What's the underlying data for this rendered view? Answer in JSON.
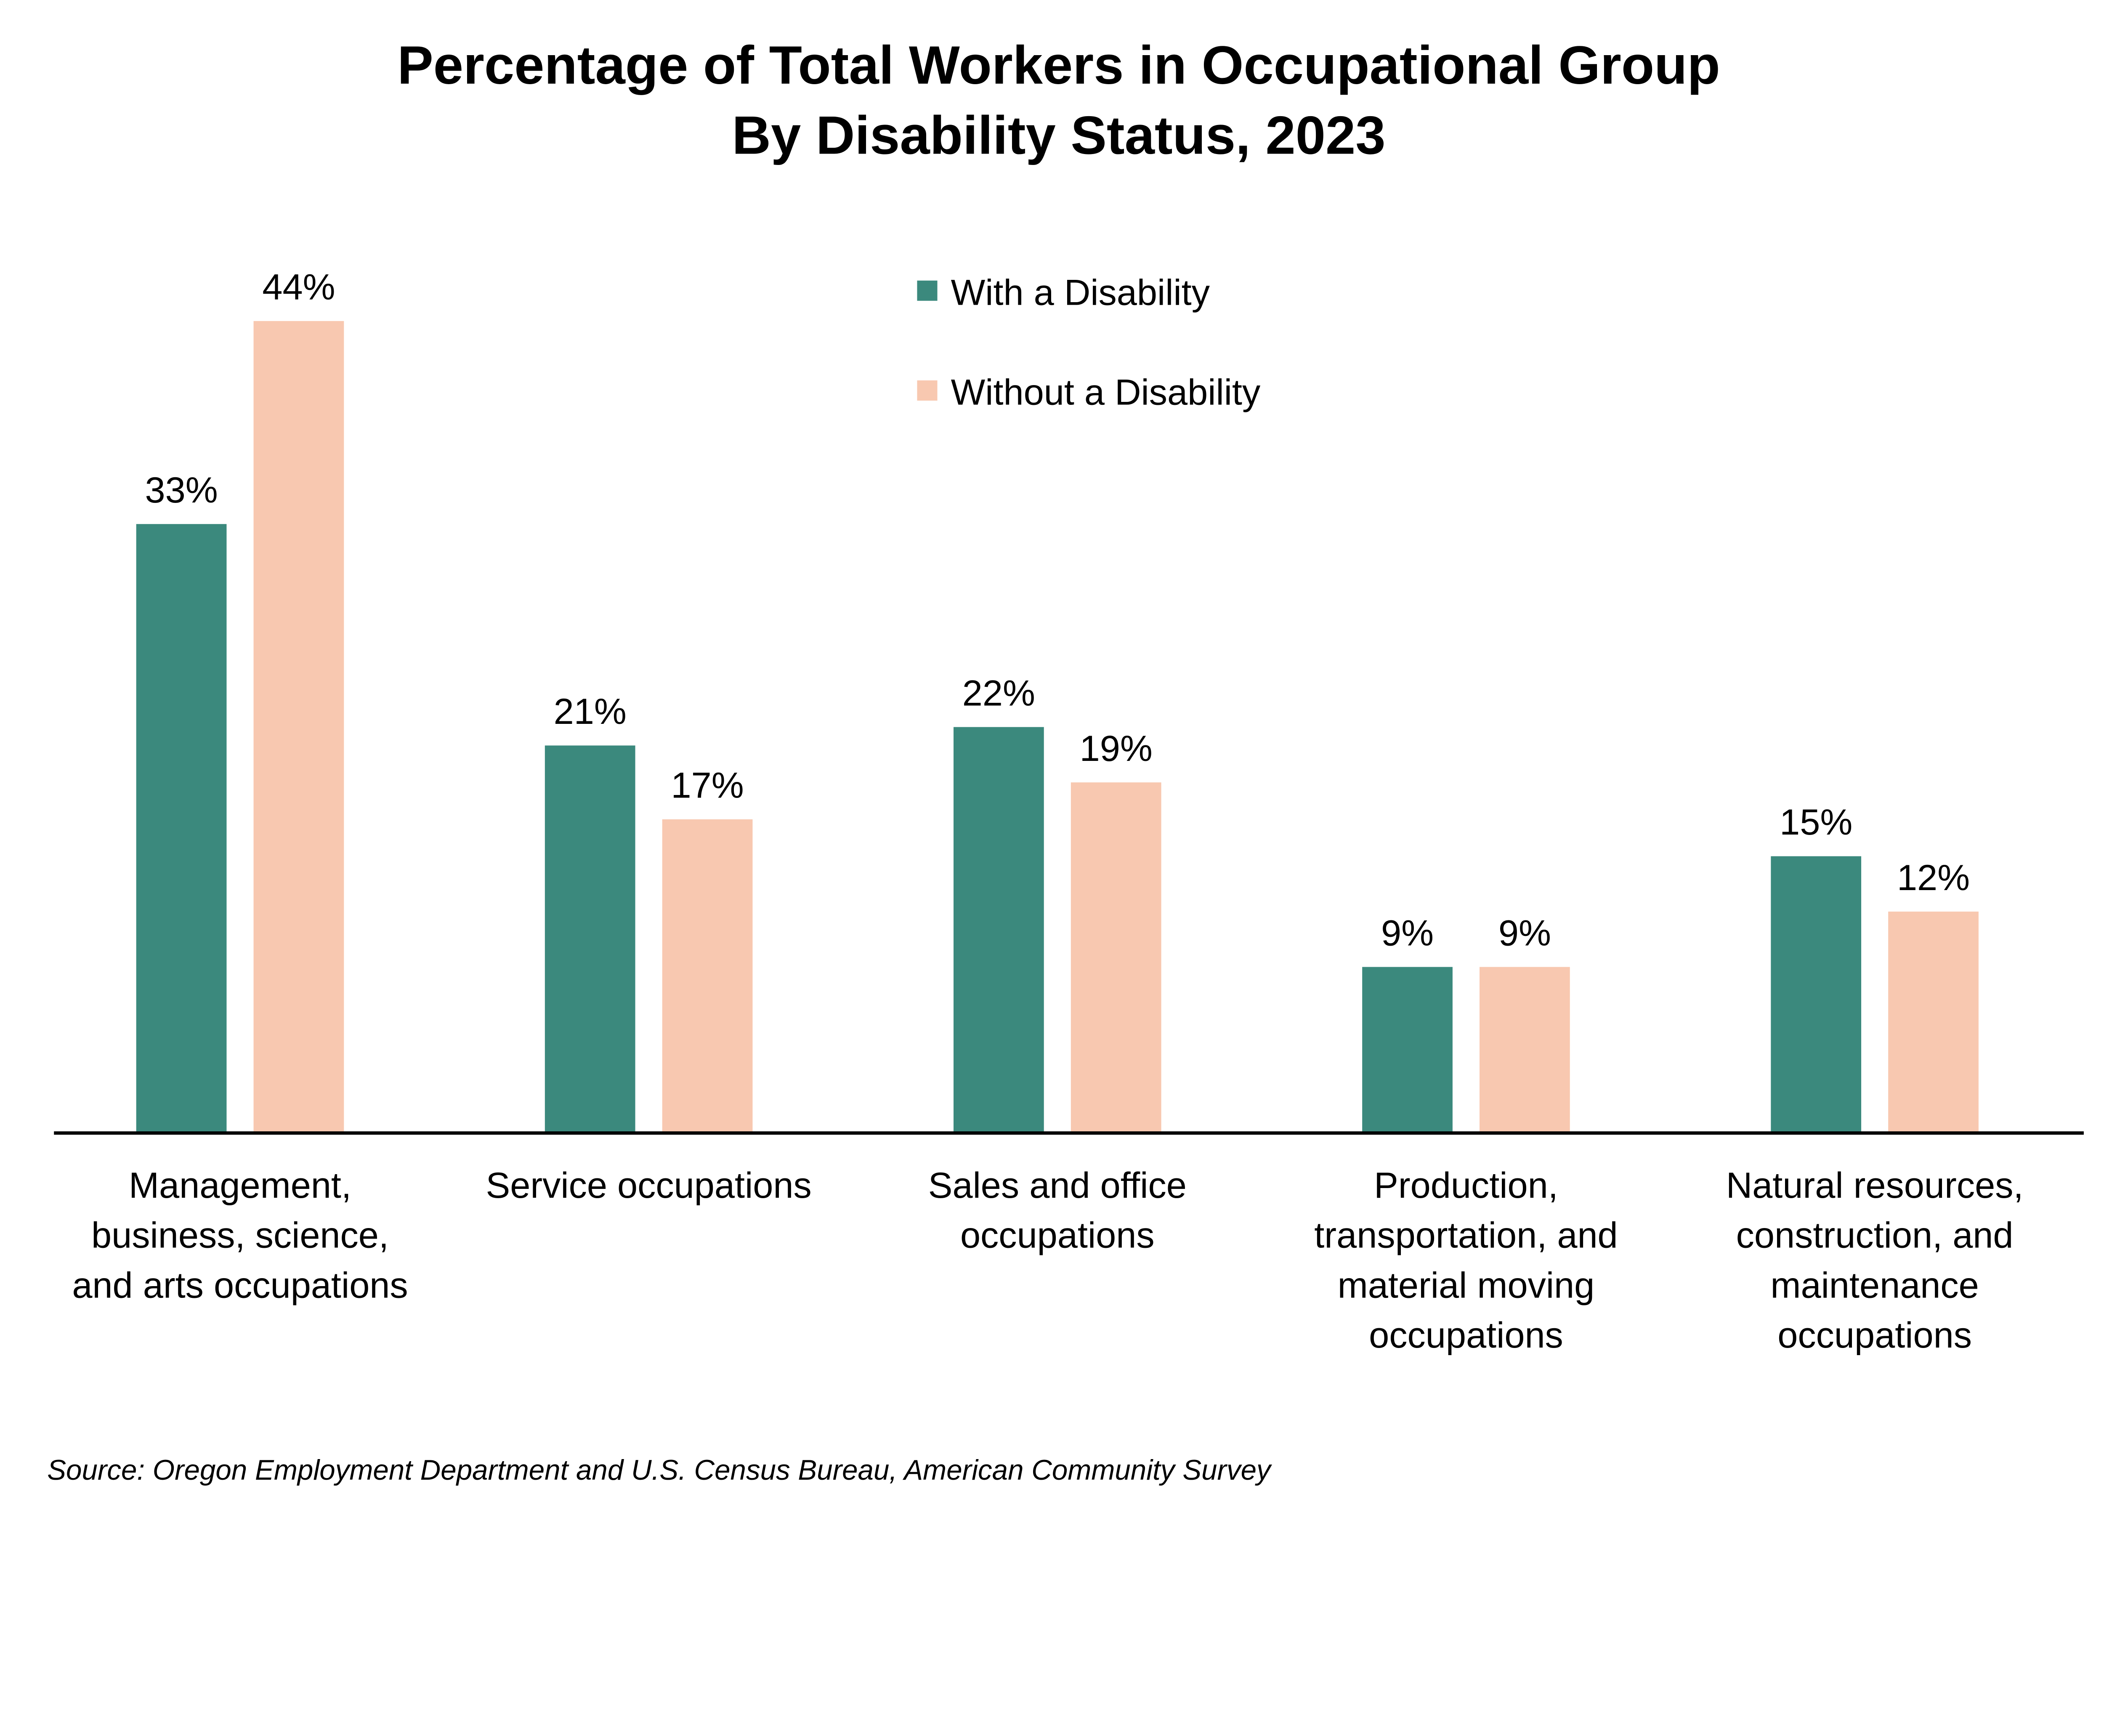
{
  "chart_data": {
    "type": "bar",
    "title": "Percentage of Total Workers in Occupational Group",
    "subtitle": "By Disability Status, 2023",
    "categories": [
      [
        "Management,",
        "business, science,",
        "and arts occupations"
      ],
      [
        "Service occupations"
      ],
      [
        "Sales and office",
        "occupations"
      ],
      [
        "Production,",
        "transportation, and",
        "material moving",
        "occupations"
      ],
      [
        "Natural resources,",
        "construction, and",
        "maintenance",
        "occupations"
      ]
    ],
    "series": [
      {
        "name": "With a Disability",
        "color": "#3b897d",
        "values": [
          33,
          21,
          22,
          9,
          15
        ],
        "labels": [
          "33%",
          "21%",
          "22%",
          "9%",
          "15%"
        ]
      },
      {
        "name": "Without a Disability",
        "color": "#f8c8b0",
        "values": [
          44,
          17,
          19,
          9,
          12
        ],
        "labels": [
          "44%",
          "17%",
          "19%",
          "9%",
          "12%"
        ]
      }
    ],
    "xlabel": "",
    "ylabel": "",
    "ylim": [
      0,
      44
    ],
    "grid": false,
    "legend": "top-center",
    "source": "Source: Oregon Employment Department and U.S. Census Bureau, American Community Survey"
  }
}
